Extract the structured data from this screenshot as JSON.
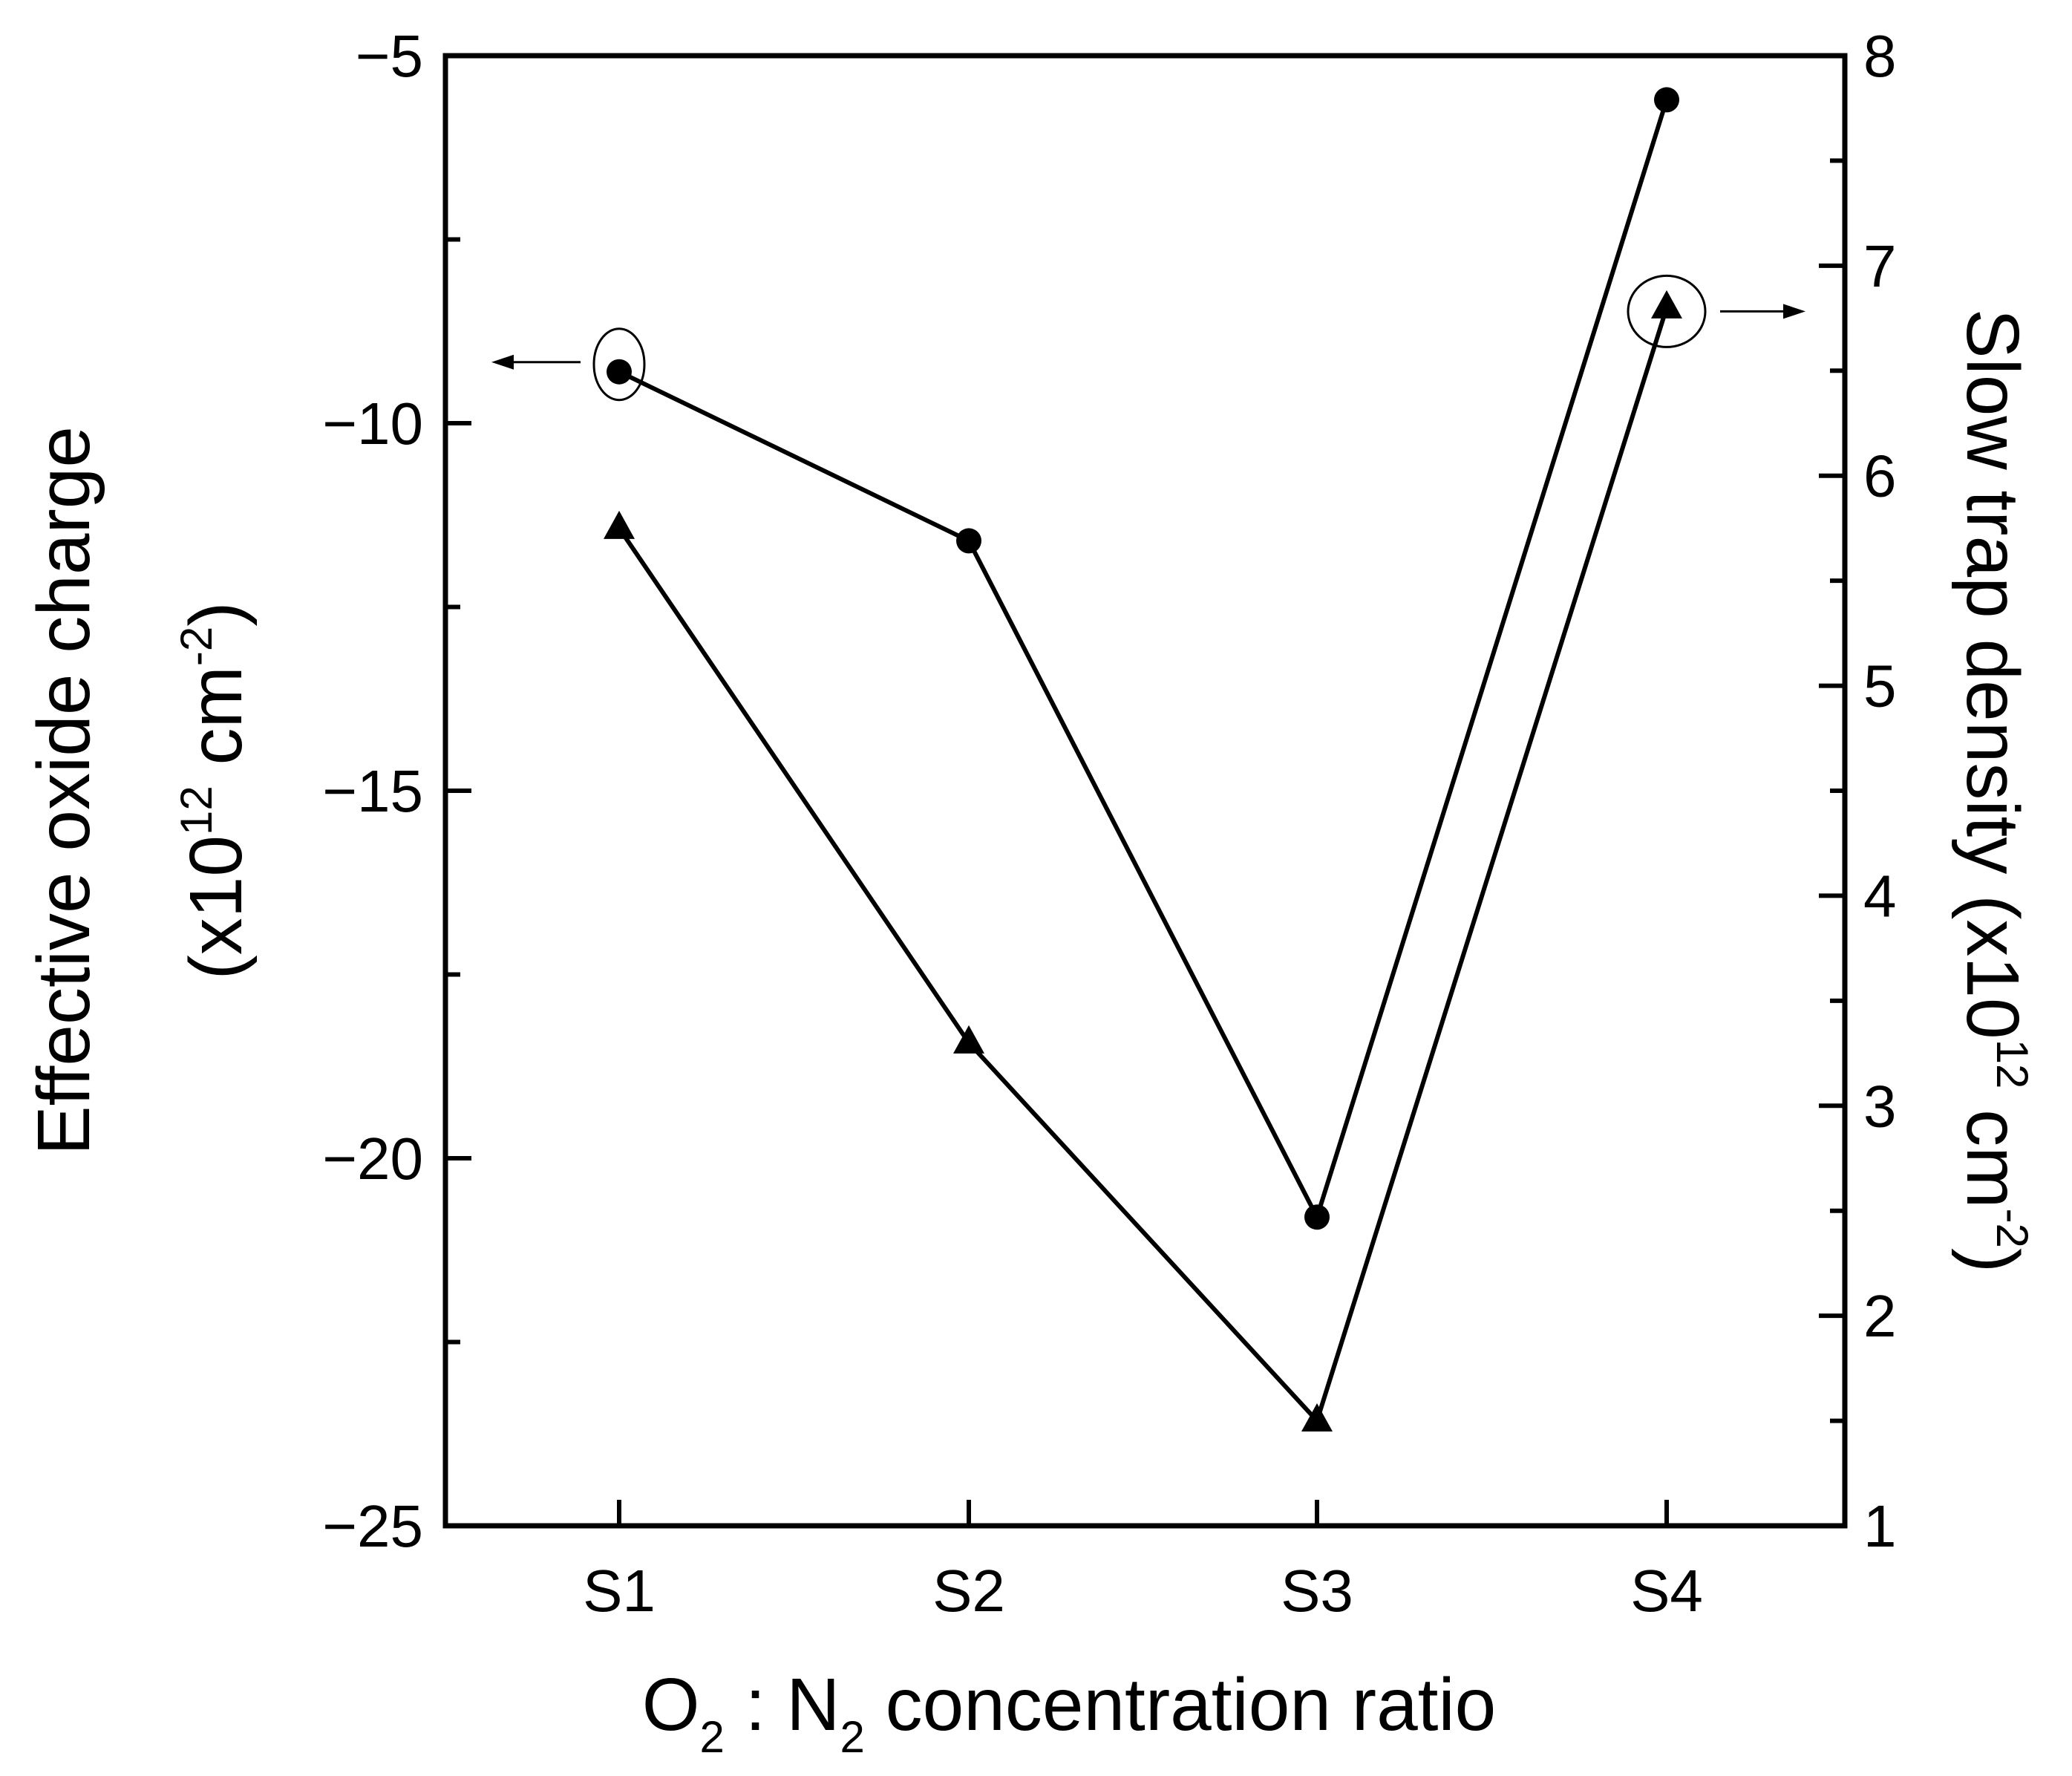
{
  "chart_data": {
    "type": "line",
    "categories": [
      "S1",
      "S2",
      "S3",
      "S4"
    ],
    "xlabel": {
      "base_o": "O",
      "sub_o": "2",
      "mid": " : N",
      "sub_n": "2",
      "rest": " concentration ratio"
    },
    "left_axis": {
      "label_line1": "Effective oxide charge",
      "label_line2_prefix": "(x10",
      "label_line2_sup1": "12",
      "label_line2_mid": " cm",
      "label_line2_sup2": "-2",
      "label_line2_suffix": ")",
      "ylim": [
        -25,
        -5
      ],
      "ticks": [
        -25,
        -20,
        -15,
        -10,
        -5
      ],
      "tick_labels": [
        "−25",
        "−20",
        "−15",
        "−10",
        "−5"
      ]
    },
    "right_axis": {
      "label_prefix": "Slow trap density (x10",
      "label_sup1": "12",
      "label_mid": " cm",
      "label_sup2": "-2",
      "label_suffix": ")",
      "ylim": [
        1,
        8
      ],
      "ticks": [
        1,
        2,
        3,
        4,
        5,
        6,
        7,
        8
      ],
      "tick_labels": [
        "1",
        "2",
        "3",
        "4",
        "5",
        "6",
        "7",
        "8"
      ]
    },
    "series": [
      {
        "name": "Effective oxide charge",
        "axis": "left",
        "marker": "circle",
        "values": [
          -9.3,
          -11.6,
          -20.8,
          -5.6
        ]
      },
      {
        "name": "Slow trap density",
        "axis": "right",
        "marker": "triangle",
        "values": [
          5.75,
          3.3,
          1.5,
          6.8
        ]
      }
    ]
  }
}
